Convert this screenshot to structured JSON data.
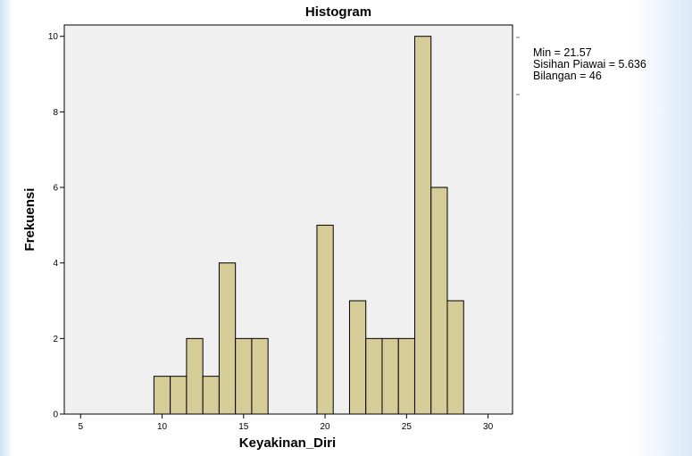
{
  "chart_data": {
    "type": "bar",
    "title": "Histogram",
    "xlabel": "Keyakinan_Diri",
    "ylabel": "Frekuensi",
    "xlim": [
      4,
      31.5
    ],
    "ylim": [
      0,
      10.3
    ],
    "xticks": [
      "5",
      "10",
      "15",
      "20",
      "25",
      "30"
    ],
    "yticks": [
      "0",
      "2",
      "4",
      "6",
      "8",
      "10"
    ],
    "bin_width": 1,
    "bins": [
      {
        "start": 9.5,
        "value": 1
      },
      {
        "start": 10.5,
        "value": 1
      },
      {
        "start": 11.5,
        "value": 2
      },
      {
        "start": 12.5,
        "value": 1
      },
      {
        "start": 13.5,
        "value": 4
      },
      {
        "start": 14.5,
        "value": 2
      },
      {
        "start": 15.5,
        "value": 2
      },
      {
        "start": 19.5,
        "value": 5
      },
      {
        "start": 21.5,
        "value": 3
      },
      {
        "start": 22.5,
        "value": 2
      },
      {
        "start": 23.5,
        "value": 2
      },
      {
        "start": 24.5,
        "value": 2
      },
      {
        "start": 25.5,
        "value": 10
      },
      {
        "start": 26.5,
        "value": 6
      },
      {
        "start": 27.5,
        "value": 3
      }
    ],
    "bar_color": "#d5cc98",
    "plot_background": "#f0f0f0",
    "stats": {
      "mean": "Min = 21.57",
      "std": "Sisihan Piawai = 5.636",
      "n": "Bilangan = 46"
    }
  }
}
